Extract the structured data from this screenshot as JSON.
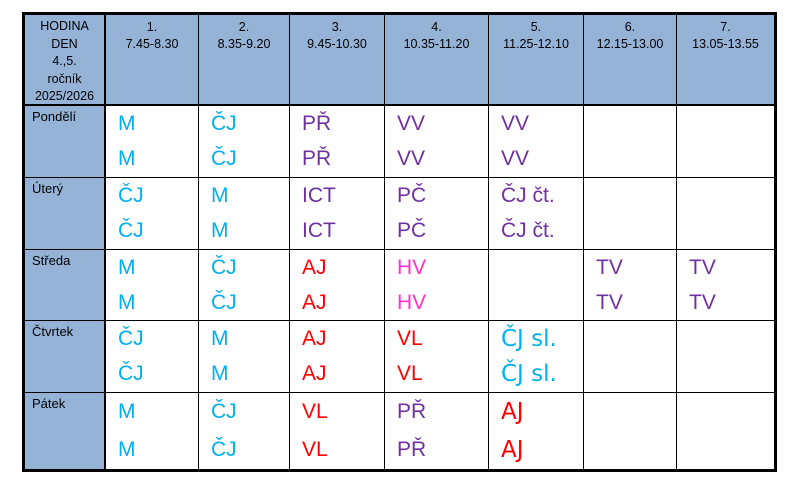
{
  "palette": {
    "header_bg": "#95B3D7",
    "border": "#000000",
    "cyan": "#00B0F0",
    "purple": "#7030A0",
    "red": "#FF0000",
    "magenta": "#FF33CC"
  },
  "corner": {
    "lines": [
      "HODINA",
      "DEN",
      "4.,5.",
      "ročník",
      "2025/2026"
    ]
  },
  "columns": [
    {
      "num": "1.",
      "time": "7.45-8.30"
    },
    {
      "num": "2.",
      "time": "8.35-9.20"
    },
    {
      "num": "3.",
      "time": "9.45-10.30"
    },
    {
      "num": "4.",
      "time": "10.35-11.20"
    },
    {
      "num": "5.",
      "time": "11.25-12.10"
    },
    {
      "num": "6.",
      "time": "12.15-13.00"
    },
    {
      "num": "7.",
      "time": "13.05-13.55"
    }
  ],
  "days": [
    {
      "label": "Pondělí",
      "cells": [
        {
          "lines": [
            "M",
            "M"
          ],
          "color": "cyan"
        },
        {
          "lines": [
            "ČJ",
            "ČJ"
          ],
          "color": "cyan"
        },
        {
          "lines": [
            "PŘ",
            "PŘ"
          ],
          "color": "purple"
        },
        {
          "lines": [
            "VV",
            "VV"
          ],
          "color": "purple"
        },
        {
          "lines": [
            "VV",
            "VV"
          ],
          "color": "purple"
        },
        {
          "lines": [
            "",
            ""
          ],
          "color": ""
        },
        {
          "lines": [
            "",
            ""
          ],
          "color": ""
        }
      ]
    },
    {
      "label": "Úterý",
      "cells": [
        {
          "lines": [
            "ČJ",
            "ČJ"
          ],
          "color": "cyan"
        },
        {
          "lines": [
            "M",
            "M"
          ],
          "color": "cyan"
        },
        {
          "lines": [
            "ICT",
            "ICT"
          ],
          "color": "purple"
        },
        {
          "lines": [
            "PČ",
            "PČ"
          ],
          "color": "purple"
        },
        {
          "lines": [
            "ČJ čt.",
            "ČJ čt."
          ],
          "color": "purple"
        },
        {
          "lines": [
            "",
            ""
          ],
          "color": ""
        },
        {
          "lines": [
            "",
            ""
          ],
          "color": ""
        }
      ]
    },
    {
      "label": "Středa",
      "cells": [
        {
          "lines": [
            "M",
            "M"
          ],
          "color": "cyan"
        },
        {
          "lines": [
            "ČJ",
            "ČJ"
          ],
          "color": "cyan"
        },
        {
          "lines": [
            "AJ",
            "AJ"
          ],
          "color": "red"
        },
        {
          "lines": [
            "HV",
            "HV"
          ],
          "color": "magenta"
        },
        {
          "lines": [
            "",
            ""
          ],
          "color": ""
        },
        {
          "lines": [
            "TV",
            "TV"
          ],
          "color": "purple"
        },
        {
          "lines": [
            "TV",
            "TV"
          ],
          "color": "purple"
        }
      ]
    },
    {
      "label": "Čtvrtek",
      "cells": [
        {
          "lines": [
            "ČJ",
            "ČJ"
          ],
          "color": "cyan"
        },
        {
          "lines": [
            "M",
            "M"
          ],
          "color": "cyan"
        },
        {
          "lines": [
            "AJ",
            "AJ"
          ],
          "color": "red"
        },
        {
          "lines": [
            "VL",
            "VL"
          ],
          "color": "red"
        },
        {
          "lines": [
            "ČJ sl.",
            "ČJ sl."
          ],
          "color": "cyan",
          "alt": true
        },
        {
          "lines": [
            "",
            ""
          ],
          "color": ""
        },
        {
          "lines": [
            "",
            ""
          ],
          "color": ""
        }
      ]
    },
    {
      "label": "Pátek",
      "cells": [
        {
          "lines": [
            "M",
            "M"
          ],
          "color": "cyan"
        },
        {
          "lines": [
            "ČJ",
            "ČJ"
          ],
          "color": "cyan"
        },
        {
          "lines": [
            "VL",
            "VL"
          ],
          "color": "red"
        },
        {
          "lines": [
            "PŘ",
            "PŘ"
          ],
          "color": "purple"
        },
        {
          "lines": [
            "AJ",
            "AJ"
          ],
          "color": "red",
          "alt": true
        },
        {
          "lines": [
            "",
            ""
          ],
          "color": ""
        },
        {
          "lines": [
            "",
            ""
          ],
          "color": ""
        }
      ]
    }
  ]
}
